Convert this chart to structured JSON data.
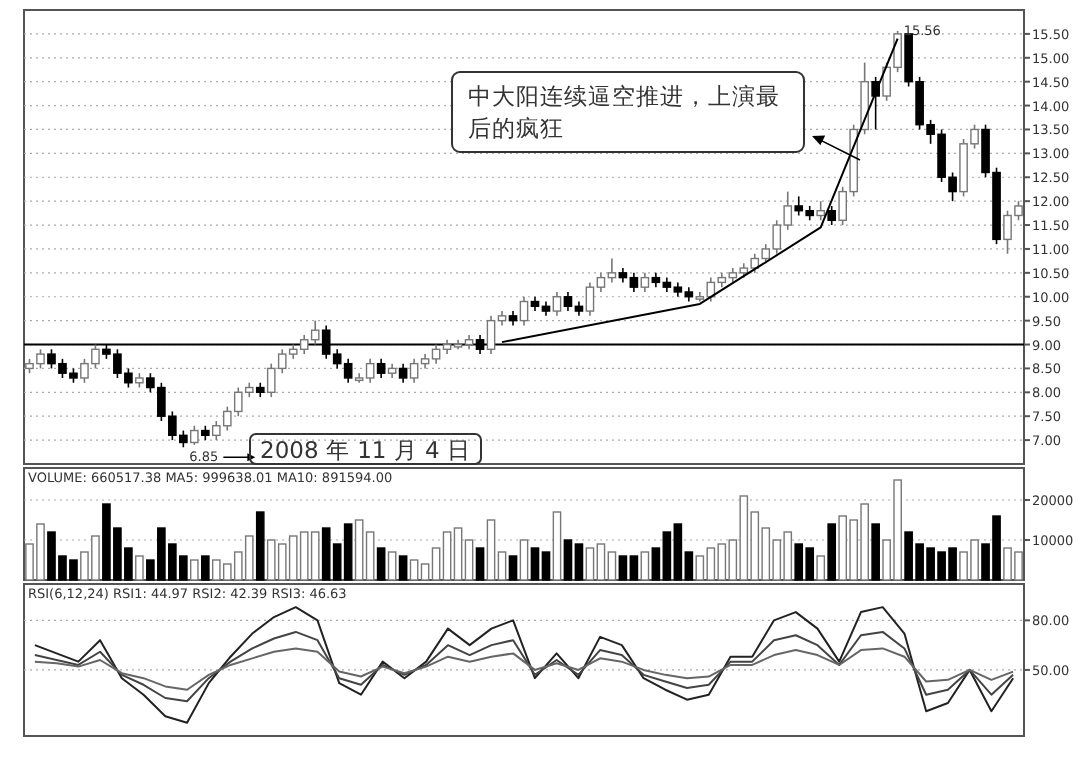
{
  "chart_data": [
    {
      "type": "candlestick",
      "categories": [
        null,
        null,
        null,
        null,
        null,
        null,
        null,
        null,
        null,
        null,
        null,
        null,
        null,
        null,
        null,
        null,
        null,
        null,
        null,
        null,
        null,
        null,
        null,
        null,
        null,
        null,
        null,
        null,
        null,
        null,
        null,
        null,
        null,
        null,
        null,
        null,
        null,
        null,
        null,
        null,
        null,
        null,
        null,
        null,
        null,
        null,
        null,
        null,
        null,
        null,
        null,
        null,
        null,
        null,
        null,
        null,
        null,
        null,
        null,
        null,
        null,
        null,
        null,
        null,
        null,
        null,
        null,
        null,
        null,
        null,
        null,
        null,
        null,
        null,
        null,
        null,
        null,
        null,
        null,
        null,
        null,
        null,
        null,
        null,
        null,
        null,
        null,
        null,
        null,
        null,
        null
      ],
      "ohlc": [
        [
          8.5,
          8.7,
          8.4,
          8.6
        ],
        [
          8.6,
          8.9,
          8.5,
          8.8
        ],
        [
          8.8,
          8.9,
          8.5,
          8.6
        ],
        [
          8.6,
          8.7,
          8.3,
          8.4
        ],
        [
          8.4,
          8.5,
          8.2,
          8.3
        ],
        [
          8.3,
          8.7,
          8.2,
          8.6
        ],
        [
          8.6,
          9.0,
          8.5,
          8.9
        ],
        [
          8.9,
          9.0,
          8.7,
          8.8
        ],
        [
          8.8,
          8.9,
          8.3,
          8.4
        ],
        [
          8.4,
          8.5,
          8.1,
          8.2
        ],
        [
          8.2,
          8.4,
          8.1,
          8.3
        ],
        [
          8.3,
          8.4,
          8.0,
          8.1
        ],
        [
          8.1,
          8.2,
          7.4,
          7.5
        ],
        [
          7.5,
          7.6,
          7.0,
          7.1
        ],
        [
          7.1,
          7.2,
          6.85,
          6.95
        ],
        [
          6.95,
          7.3,
          6.9,
          7.2
        ],
        [
          7.2,
          7.3,
          7.0,
          7.1
        ],
        [
          7.1,
          7.4,
          7.0,
          7.3
        ],
        [
          7.3,
          7.7,
          7.2,
          7.6
        ],
        [
          7.6,
          8.1,
          7.5,
          8.0
        ],
        [
          8.0,
          8.2,
          7.9,
          8.1
        ],
        [
          8.1,
          8.2,
          7.9,
          8.0
        ],
        [
          8.0,
          8.6,
          7.9,
          8.5
        ],
        [
          8.5,
          8.9,
          8.4,
          8.8
        ],
        [
          8.8,
          9.0,
          8.7,
          8.9
        ],
        [
          8.9,
          9.2,
          8.8,
          9.1
        ],
        [
          9.1,
          9.5,
          9.0,
          9.3
        ],
        [
          9.3,
          9.4,
          8.7,
          8.8
        ],
        [
          8.8,
          8.9,
          8.5,
          8.6
        ],
        [
          8.6,
          8.7,
          8.2,
          8.3
        ],
        [
          8.25,
          8.4,
          8.2,
          8.3
        ],
        [
          8.3,
          8.7,
          8.2,
          8.6
        ],
        [
          8.6,
          8.7,
          8.3,
          8.4
        ],
        [
          8.4,
          8.6,
          8.3,
          8.5
        ],
        [
          8.5,
          8.6,
          8.2,
          8.3
        ],
        [
          8.3,
          8.7,
          8.2,
          8.6
        ],
        [
          8.6,
          8.8,
          8.5,
          8.7
        ],
        [
          8.7,
          9.0,
          8.6,
          8.9
        ],
        [
          8.9,
          9.1,
          8.8,
          9.0
        ],
        [
          8.95,
          9.1,
          8.9,
          9.0
        ],
        [
          9.0,
          9.2,
          8.9,
          9.1
        ],
        [
          9.1,
          9.2,
          8.8,
          8.9
        ],
        [
          8.9,
          9.6,
          8.8,
          9.5
        ],
        [
          9.5,
          9.7,
          9.4,
          9.6
        ],
        [
          9.6,
          9.7,
          9.4,
          9.5
        ],
        [
          9.5,
          10.0,
          9.4,
          9.9
        ],
        [
          9.9,
          10.0,
          9.7,
          9.8
        ],
        [
          9.8,
          9.9,
          9.6,
          9.7
        ],
        [
          9.7,
          10.1,
          9.6,
          10.0
        ],
        [
          10.0,
          10.1,
          9.7,
          9.8
        ],
        [
          9.8,
          9.9,
          9.6,
          9.7
        ],
        [
          9.7,
          10.3,
          9.6,
          10.2
        ],
        [
          10.2,
          10.5,
          10.1,
          10.4
        ],
        [
          10.4,
          10.8,
          10.3,
          10.5
        ],
        [
          10.5,
          10.6,
          10.3,
          10.4
        ],
        [
          10.4,
          10.5,
          10.1,
          10.2
        ],
        [
          10.2,
          10.5,
          10.1,
          10.4
        ],
        [
          10.4,
          10.5,
          10.2,
          10.3
        ],
        [
          10.3,
          10.4,
          10.1,
          10.2
        ],
        [
          10.2,
          10.3,
          10.0,
          10.1
        ],
        [
          10.1,
          10.2,
          9.9,
          10.0
        ],
        [
          9.95,
          10.1,
          9.9,
          10.0
        ],
        [
          10.0,
          10.4,
          9.9,
          10.3
        ],
        [
          10.3,
          10.5,
          10.2,
          10.4
        ],
        [
          10.4,
          10.6,
          10.3,
          10.5
        ],
        [
          10.5,
          10.7,
          10.4,
          10.6
        ],
        [
          10.6,
          10.9,
          10.5,
          10.8
        ],
        [
          10.8,
          11.1,
          10.7,
          11.0
        ],
        [
          11.0,
          11.6,
          10.9,
          11.5
        ],
        [
          11.5,
          12.2,
          11.4,
          11.9
        ],
        [
          11.9,
          12.1,
          11.7,
          11.8
        ],
        [
          11.8,
          11.9,
          11.6,
          11.7
        ],
        [
          11.7,
          12.0,
          11.6,
          11.8
        ],
        [
          11.8,
          11.9,
          11.5,
          11.6
        ],
        [
          11.6,
          12.3,
          11.5,
          12.2
        ],
        [
          12.2,
          13.6,
          12.1,
          13.5
        ],
        [
          13.5,
          14.9,
          13.4,
          14.5
        ],
        [
          14.5,
          14.6,
          13.5,
          14.2
        ],
        [
          14.2,
          14.9,
          14.1,
          14.8
        ],
        [
          14.8,
          15.56,
          14.7,
          15.5
        ],
        [
          15.5,
          15.5,
          14.4,
          14.5
        ],
        [
          14.5,
          14.6,
          13.5,
          13.6
        ],
        [
          13.6,
          13.7,
          13.2,
          13.4
        ],
        [
          13.4,
          13.5,
          12.4,
          12.5
        ],
        [
          12.5,
          12.6,
          12.0,
          12.2
        ],
        [
          12.2,
          13.3,
          12.1,
          13.2
        ],
        [
          13.2,
          13.6,
          13.1,
          13.5
        ],
        [
          13.5,
          13.6,
          12.5,
          12.6
        ],
        [
          12.6,
          12.7,
          11.1,
          11.2
        ],
        [
          11.2,
          11.8,
          10.9,
          11.7
        ],
        [
          11.7,
          12.0,
          11.6,
          11.9
        ]
      ],
      "series": [
        {
          "type": "line",
          "color": "#000000",
          "values": [
            null,
            null,
            null,
            null,
            null,
            null,
            null,
            null,
            null,
            null,
            null,
            null,
            null,
            null,
            null,
            null,
            null,
            null,
            null,
            null,
            null,
            null,
            null,
            null,
            null,
            null,
            null,
            null,
            null,
            null,
            null,
            null,
            null,
            null,
            null,
            null,
            null,
            null,
            null,
            null,
            null,
            null,
            null,
            9.05,
            null,
            null,
            null,
            null,
            null,
            null,
            null,
            null,
            null,
            null,
            null,
            null,
            null,
            null,
            null,
            null,
            null,
            9.85,
            null,
            null,
            null,
            null,
            null,
            null,
            null,
            null,
            null,
            null,
            11.45,
            null,
            null,
            null,
            null,
            null,
            null,
            15.4,
            null,
            null,
            null,
            null,
            null,
            null,
            null,
            null,
            null,
            null,
            null
          ]
        }
      ],
      "ylim": [
        6.5,
        16.0
      ],
      "yticks": [
        {
          "value": 7,
          "label": "7.00"
        },
        {
          "value": 7.5,
          "label": "7.50"
        },
        {
          "value": 8,
          "label": "8.00"
        },
        {
          "value": 8.5,
          "label": "8.50"
        },
        {
          "value": 9,
          "label": "9.00"
        },
        {
          "value": 9.5,
          "label": "9.50"
        },
        {
          "value": 10,
          "label": "10.00"
        },
        {
          "value": 10.5,
          "label": "10.50"
        },
        {
          "value": 11,
          "label": "11.00"
        },
        {
          "value": 11.5,
          "label": "11.50"
        },
        {
          "value": 12,
          "label": "12.00"
        },
        {
          "value": 12.5,
          "label": "12.50"
        },
        {
          "value": 13,
          "label": "13.00"
        },
        {
          "value": 13.5,
          "label": "13.50"
        },
        {
          "value": 14,
          "label": "14.00"
        },
        {
          "value": 14.5,
          "label": "14.50"
        },
        {
          "value": 15,
          "label": "15.00"
        },
        {
          "value": 15.5,
          "label": "15.50"
        }
      ],
      "grid": "y",
      "ref_lines": [
        {
          "axis": "y",
          "value": 9.0,
          "color": "#000000"
        }
      ],
      "annotations": [
        "15.56",
        "6.85",
        "2008 年 11 月 4 日",
        "中大阳连续逼空推进，上演最后的疯狂"
      ]
    },
    {
      "type": "bar",
      "title": "VOLUME: 660517.38 MA5: 999638.01 MA10: 891594.00",
      "categories": [
        null,
        null,
        null,
        null,
        null,
        null,
        null,
        null,
        null,
        null,
        null,
        null,
        null,
        null,
        null,
        null,
        null,
        null,
        null,
        null,
        null,
        null,
        null,
        null,
        null,
        null,
        null,
        null,
        null,
        null,
        null,
        null,
        null,
        null,
        null,
        null,
        null,
        null,
        null,
        null,
        null,
        null,
        null,
        null,
        null,
        null,
        null,
        null,
        null,
        null,
        null,
        null,
        null,
        null,
        null,
        null,
        null,
        null,
        null,
        null,
        null,
        null,
        null,
        null,
        null,
        null,
        null,
        null,
        null,
        null,
        null,
        null,
        null,
        null,
        null,
        null,
        null,
        null,
        null,
        null,
        null,
        null,
        null,
        null,
        null,
        null,
        null,
        null,
        null,
        null,
        null
      ],
      "values": [
        9000,
        14000,
        12000,
        6000,
        5000,
        7000,
        11000,
        19000,
        13000,
        8000,
        6000,
        5000,
        13000,
        9000,
        6000,
        5000,
        6000,
        5000,
        4000,
        7000,
        11000,
        17000,
        10000,
        9000,
        11000,
        12000,
        12000,
        13000,
        9000,
        14000,
        15000,
        12000,
        8000,
        7000,
        6000,
        5000,
        4000,
        8000,
        12000,
        13000,
        10000,
        8000,
        15000,
        7000,
        6000,
        10000,
        8000,
        7000,
        17000,
        10000,
        9000,
        8000,
        9000,
        7000,
        6000,
        6000,
        7000,
        8000,
        12000,
        14000,
        7000,
        6000,
        8000,
        9000,
        10000,
        21000,
        17000,
        13000,
        10000,
        12000,
        9000,
        8000,
        6000,
        14000,
        16000,
        15000,
        19000,
        14000,
        10000,
        25000,
        12000,
        9000,
        8000,
        7000,
        8000,
        7000,
        10000,
        9000,
        16000,
        8000,
        7000
      ],
      "colors": [
        "#ffffff",
        "#ffffff",
        "#000000",
        "#000000",
        "#000000",
        "#ffffff",
        "#ffffff",
        "#000000",
        "#000000",
        "#000000",
        "#ffffff",
        "#000000",
        "#000000",
        "#000000",
        "#000000",
        "#ffffff",
        "#000000",
        "#ffffff",
        "#ffffff",
        "#ffffff",
        "#ffffff",
        "#000000",
        "#ffffff",
        "#ffffff",
        "#ffffff",
        "#ffffff",
        "#ffffff",
        "#000000",
        "#000000",
        "#000000",
        "#ffffff",
        "#ffffff",
        "#000000",
        "#ffffff",
        "#000000",
        "#ffffff",
        "#ffffff",
        "#ffffff",
        "#ffffff",
        "#ffffff",
        "#ffffff",
        "#000000",
        "#ffffff",
        "#ffffff",
        "#000000",
        "#ffffff",
        "#000000",
        "#000000",
        "#ffffff",
        "#000000",
        "#000000",
        "#ffffff",
        "#ffffff",
        "#ffffff",
        "#000000",
        "#000000",
        "#ffffff",
        "#000000",
        "#000000",
        "#000000",
        "#000000",
        "#ffffff",
        "#ffffff",
        "#ffffff",
        "#ffffff",
        "#ffffff",
        "#ffffff",
        "#ffffff",
        "#ffffff",
        "#ffffff",
        "#000000",
        "#000000",
        "#ffffff",
        "#000000",
        "#ffffff",
        "#ffffff",
        "#ffffff",
        "#000000",
        "#ffffff",
        "#ffffff",
        "#000000",
        "#000000",
        "#000000",
        "#000000",
        "#000000",
        "#ffffff",
        "#ffffff",
        "#000000",
        "#000000",
        "#ffffff",
        "#ffffff"
      ],
      "ylim": [
        0,
        28000
      ],
      "yticks": [
        10000,
        20000
      ],
      "grid": "y"
    },
    {
      "type": "line",
      "title": "RSI(6,12,24) RSI1: 44.97 RSI2: 42.39 RSI3: 46.63",
      "categories": [
        null,
        null,
        null,
        null,
        null,
        null,
        null,
        null,
        null,
        null,
        null,
        null,
        null,
        null,
        null,
        null,
        null,
        null,
        null,
        null,
        null,
        null,
        null,
        null,
        null,
        null,
        null,
        null,
        null,
        null,
        null,
        null,
        null,
        null,
        null,
        null,
        null,
        null,
        null,
        null,
        null,
        null,
        null,
        null,
        null,
        null
      ],
      "series": [
        {
          "color": "#222222",
          "values": [
            65,
            60,
            55,
            68,
            45,
            35,
            22,
            18,
            42,
            58,
            72,
            82,
            88,
            80,
            42,
            35,
            55,
            45,
            55,
            75,
            65,
            75,
            80,
            45,
            60,
            45,
            70,
            65,
            45,
            38,
            32,
            35,
            58,
            58,
            80,
            85,
            75,
            55,
            85,
            88,
            72,
            25,
            30,
            50,
            25,
            45
          ]
        },
        {
          "color": "#444444",
          "values": [
            59,
            56,
            53,
            61,
            47,
            41,
            33,
            31,
            45,
            55,
            63,
            69,
            73,
            68,
            45,
            41,
            53,
            47,
            53,
            65,
            59,
            65,
            68,
            47,
            56,
            47,
            62,
            59,
            47,
            43,
            39,
            41,
            55,
            55,
            68,
            71,
            65,
            53,
            71,
            73,
            63,
            35,
            38,
            50,
            35,
            47
          ]
        },
        {
          "color": "#666666",
          "values": [
            55,
            54,
            52,
            56,
            48,
            45,
            40,
            38,
            47,
            53,
            57,
            61,
            63,
            61,
            49,
            46,
            52,
            48,
            52,
            58,
            55,
            58,
            60,
            50,
            54,
            50,
            57,
            55,
            50,
            47,
            45,
            46,
            53,
            53,
            59,
            62,
            59,
            53,
            62,
            63,
            58,
            43,
            44,
            50,
            44,
            49
          ]
        }
      ],
      "ylim": [
        10,
        102
      ],
      "yticks": [
        {
          "value": 50,
          "label": "50.00"
        },
        {
          "value": 80,
          "label": "80.00"
        }
      ],
      "grid": "y"
    }
  ]
}
